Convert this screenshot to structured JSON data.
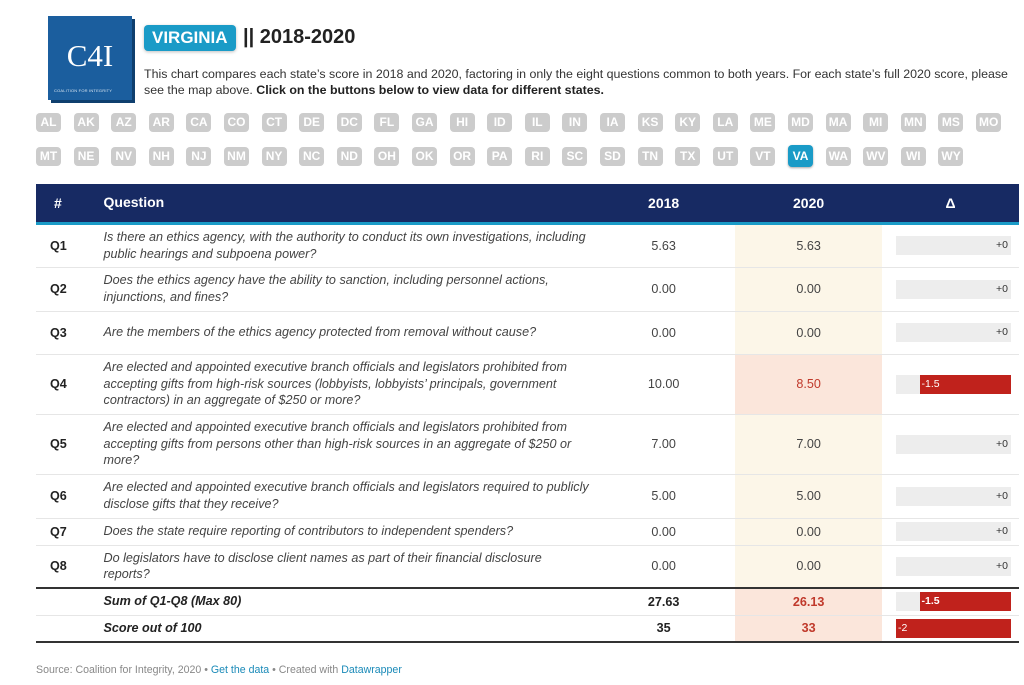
{
  "logo": {
    "mark": "C4I",
    "subtitle": "COALITION FOR INTEGRITY"
  },
  "header": {
    "state": "VIRGINIA",
    "title_rest": "|| 2018-2020",
    "intro_plain": "This chart compares each state’s score in 2018 and 2020, factoring in only the eight questions common to both years. For each state’s full 2020 score, please see the map above. ",
    "intro_bold": "Click on the buttons below to view data for different states."
  },
  "states_row1": [
    "AL",
    "AK",
    "AZ",
    "AR",
    "CA",
    "CO",
    "CT",
    "DE",
    "DC",
    "FL",
    "GA",
    "HI",
    "ID",
    "IL",
    "IN",
    "IA",
    "KS",
    "KY",
    "LA",
    "ME",
    "MD",
    "MA",
    "MI",
    "MN",
    "MS",
    "MO"
  ],
  "states_row2": [
    "MT",
    "NE",
    "NV",
    "NH",
    "NJ",
    "NM",
    "NY",
    "NC",
    "ND",
    "OH",
    "OK",
    "OR",
    "PA",
    "RI",
    "SC",
    "SD",
    "TN",
    "TX",
    "UT",
    "VT",
    "VA",
    "WA",
    "WV",
    "WI",
    "WY"
  ],
  "selected_state": "VA",
  "table": {
    "headers": {
      "num": "#",
      "question": "Question",
      "y2018": "2018",
      "y2020": "2020",
      "delta": "Δ"
    },
    "rows": [
      {
        "id": "Q1",
        "question": "Is there an ethics agency, with the authority to conduct its own investigations, including public hearings and subpoena power?",
        "y2018": "5.63",
        "y2020": "5.63",
        "delta": 0,
        "delta_label": "+0"
      },
      {
        "id": "Q2",
        "question": "Does the ethics agency have the ability to sanction, including personnel actions, injunctions, and fines?",
        "y2018": "0.00",
        "y2020": "0.00",
        "delta": 0,
        "delta_label": "+0"
      },
      {
        "id": "Q3",
        "question": "Are the members of the ethics agency protected from removal without cause?",
        "y2018": "0.00",
        "y2020": "0.00",
        "delta": 0,
        "delta_label": "+0"
      },
      {
        "id": "Q4",
        "question": "Are elected and appointed executive branch officials and legislators prohibited from accepting gifts from high-risk sources (lobbyists, lobbyists’ principals, government contractors) in an aggregate of $250 or more?",
        "y2018": "10.00",
        "y2020": "8.50",
        "delta": -1.5,
        "delta_label": "-1.5"
      },
      {
        "id": "Q5",
        "question": "Are elected and appointed executive branch officials and legislators prohibited from accepting gifts from persons other than high-risk sources in an aggregate of $250 or more?",
        "y2018": "7.00",
        "y2020": "7.00",
        "delta": 0,
        "delta_label": "+0"
      },
      {
        "id": "Q6",
        "question": "Are elected and appointed executive branch officials and legislators required to publicly disclose gifts that they receive?",
        "y2018": "5.00",
        "y2020": "5.00",
        "delta": 0,
        "delta_label": "+0"
      },
      {
        "id": "Q7",
        "question": "Does the state require reporting of contributors to independent spenders?",
        "y2018": "0.00",
        "y2020": "0.00",
        "delta": 0,
        "delta_label": "+0"
      },
      {
        "id": "Q8",
        "question": "Do legislators have to disclose client names as part of their financial disclosure reports?",
        "y2018": "0.00",
        "y2020": "0.00",
        "delta": 0,
        "delta_label": "+0"
      }
    ],
    "sum": {
      "label": "Sum of Q1-Q8 (Max 80)",
      "y2018": "27.63",
      "y2020": "26.13",
      "delta": -1.5,
      "delta_label": "-1.5"
    },
    "score": {
      "label": "Score out of 100",
      "y2018": "35",
      "y2020": "33",
      "delta": -2,
      "delta_label": "-2"
    }
  },
  "footer": {
    "source": "Source: Coalition for Integrity, 2020 • ",
    "get_data": "Get the data",
    "created": " • Created with ",
    "tool": "Datawrapper"
  },
  "colors": {
    "accent": "#1a9bc7",
    "header_bg": "#172a63",
    "negative": "#c0221c",
    "inactive_button": "#cccccc"
  }
}
